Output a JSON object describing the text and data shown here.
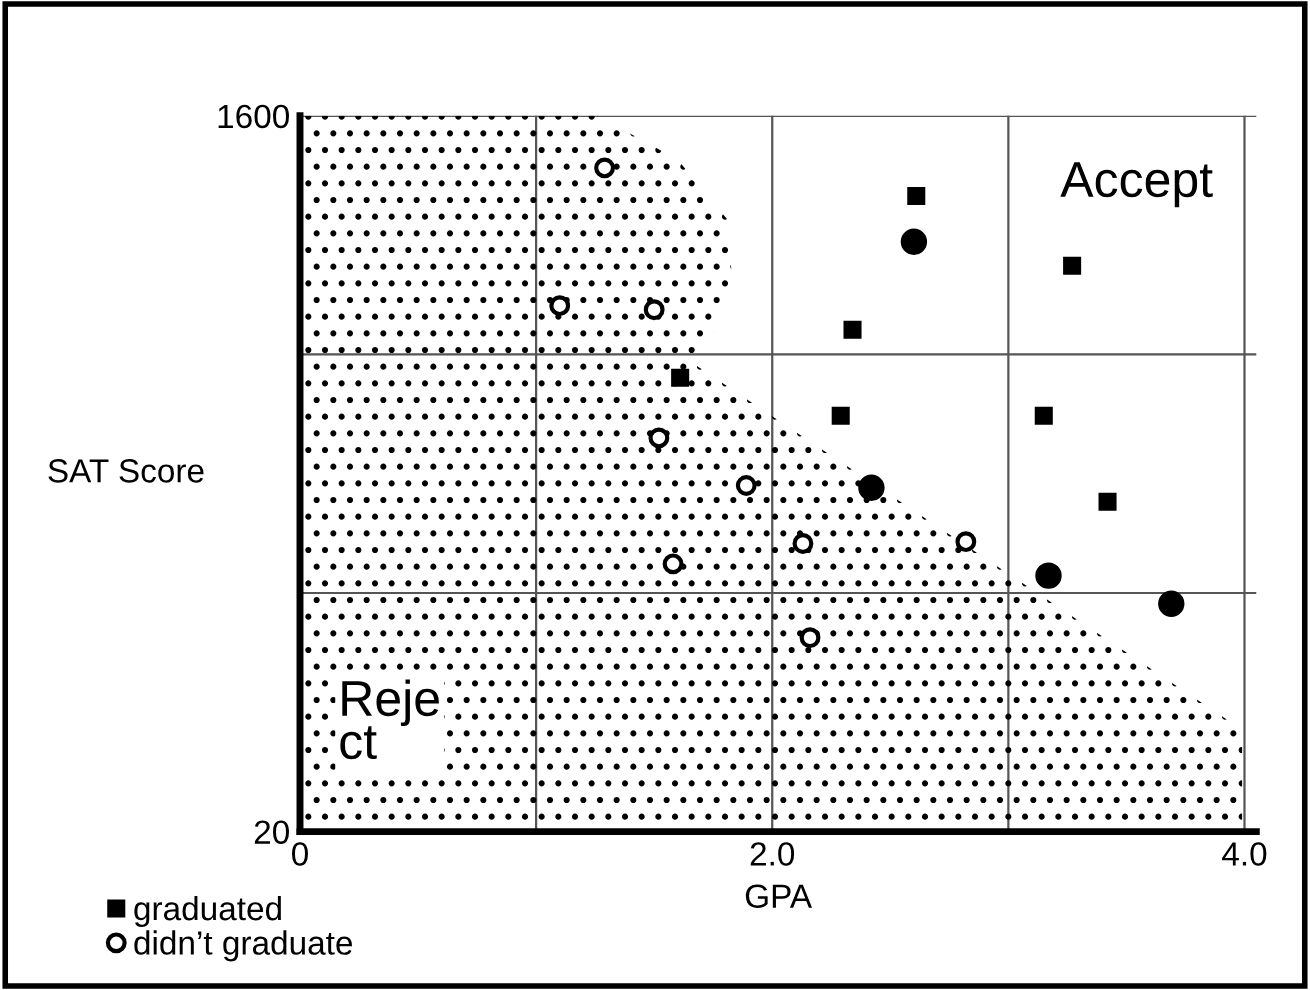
{
  "chart_data": {
    "type": "scatter",
    "xlabel": "GPA",
    "ylabel": "SAT Score",
    "xlim": [
      0,
      4.05
    ],
    "ylim": [
      20,
      1600
    ],
    "xticks": [
      {
        "value": 0,
        "label": "0"
      },
      {
        "value": 1,
        "label": null
      },
      {
        "value": 2,
        "label": "2.0"
      },
      {
        "value": 3,
        "label": null
      },
      {
        "value": 4,
        "label": "4.0"
      }
    ],
    "yticks": [
      20,
      {
        "value": 546.7,
        "label": null
      },
      {
        "value": 1073.3,
        "label": null
      },
      1600
    ],
    "grid": true,
    "legend": "bottom left",
    "series": [
      {
        "type": "area",
        "color": "#000000",
        "x": [
          0,
          1.26,
          1.6,
          1.81,
          1.83,
          1.76,
          1.64,
          3.99,
          3.99,
          0
        ],
        "values": [
          1600,
          1600,
          1503,
          1371,
          1238,
          1128,
          1062,
          245,
          20,
          20
        ]
      },
      {
        "name": "graduated",
        "marker": "square",
        "color": "#000000",
        "x": [
          2.61,
          2.34,
          1.61,
          2.29,
          3.15,
          3.27,
          3.42
        ],
        "values": [
          1423,
          1128,
          1022,
          938,
          938,
          1269,
          748
        ]
      },
      {
        "marker": "circle",
        "color": "#000000",
        "x": [
          2.6,
          2.42,
          3.17,
          3.69
        ],
        "values": [
          1322,
          779,
          585,
          523
        ]
      },
      {
        "name": "didn’t graduate",
        "marker": "open circle",
        "color": "#000000",
        "x": [
          1.29,
          1.1,
          1.5,
          1.52,
          1.89,
          1.58,
          2.13,
          2.82,
          2.16
        ],
        "values": [
          1485,
          1181,
          1172,
          889,
          784,
          611,
          656,
          660,
          448
        ]
      }
    ],
    "annotations": [
      "Accept",
      "Reje\nct"
    ]
  }
}
